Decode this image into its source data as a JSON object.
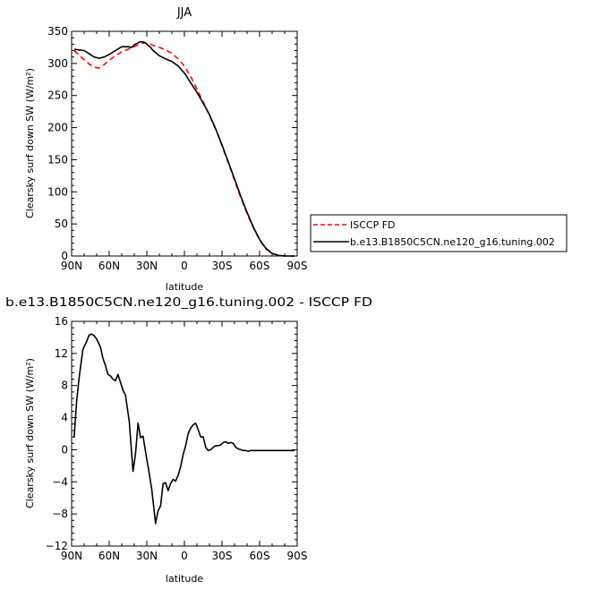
{
  "chart_data": [
    {
      "type": "line",
      "title": "JJA",
      "xlabel": "latitude",
      "ylabel": "Clearsky surf down SW (W/m²)",
      "xlim": [
        90,
        -90
      ],
      "ylim": [
        0,
        350
      ],
      "x_tick_values": [
        90,
        60,
        30,
        0,
        -30,
        -60,
        -90
      ],
      "x_tick_labels": [
        "90N",
        "60N",
        "30N",
        "0",
        "30S",
        "60S",
        "90S"
      ],
      "y_tick_values": [
        0,
        50,
        100,
        150,
        200,
        250,
        300,
        350
      ],
      "y_tick_labels": [
        "0",
        "50",
        "100",
        "150",
        "200",
        "250",
        "300",
        "350"
      ],
      "legend": {
        "position": "outside-right"
      },
      "series": [
        {
          "name": "ISCCP FD",
          "color": "#ff0000",
          "dash": "dashed",
          "x": [
            88,
            84,
            80,
            76,
            72,
            68,
            64,
            60,
            55,
            50,
            45,
            40,
            35,
            32,
            30,
            27,
            25,
            20,
            15,
            10,
            5,
            0,
            -5,
            -10,
            -15,
            -20,
            -25,
            -30,
            -35,
            -40,
            -45,
            -50,
            -55,
            -60,
            -65,
            -70,
            -75,
            -80,
            -84,
            -88
          ],
          "y": [
            320,
            313,
            306,
            299,
            294,
            293,
            298,
            305,
            312,
            318,
            322,
            326,
            331,
            332,
            331,
            330,
            328,
            325,
            321,
            316,
            307,
            296,
            280,
            260,
            240,
            219,
            197,
            172,
            145,
            118,
            91,
            66,
            44,
            25,
            11,
            4,
            1,
            0,
            0,
            0
          ]
        },
        {
          "name": "b.e13.B1850C5CN.ne120_g16.tuning.002",
          "color": "#000000",
          "dash": "solid",
          "x": [
            88,
            84,
            80,
            76,
            72,
            68,
            64,
            60,
            55,
            50,
            45,
            42,
            40,
            35,
            32,
            30,
            27,
            25,
            20,
            15,
            10,
            5,
            0,
            -5,
            -10,
            -15,
            -20,
            -25,
            -30,
            -35,
            -40,
            -45,
            -50,
            -55,
            -60,
            -65,
            -70,
            -75,
            -80,
            -84,
            -88
          ],
          "y": [
            322,
            321,
            320,
            315,
            310,
            308,
            310,
            314,
            320,
            326,
            326,
            325,
            329,
            334,
            333,
            330,
            325,
            320,
            312,
            307,
            303,
            296,
            285,
            270,
            255,
            238,
            220,
            198,
            173,
            147,
            120,
            93,
            68,
            45,
            26,
            12,
            4,
            1,
            0,
            0,
            0
          ]
        }
      ]
    },
    {
      "type": "line",
      "title": "b.e13.B1850C5CN.ne120_g16.tuning.002 - ISCCP FD",
      "xlabel": "latitude",
      "ylabel": "Clearsky surf down SW (W/m²)",
      "xlim": [
        90,
        -90
      ],
      "ylim": [
        -12,
        16
      ],
      "x_tick_values": [
        90,
        60,
        30,
        0,
        -30,
        -60,
        -90
      ],
      "x_tick_labels": [
        "90N",
        "60N",
        "30N",
        "0",
        "30S",
        "60S",
        "90S"
      ],
      "y_tick_values": [
        -12,
        -8,
        -4,
        0,
        4,
        8,
        12,
        16
      ],
      "y_tick_labels": [
        "−12",
        "−8",
        "−4",
        "0",
        "4",
        "8",
        "12",
        "16"
      ],
      "series": [
        {
          "color": "#000000",
          "dash": "solid",
          "x": [
            88,
            86,
            84,
            81,
            78,
            76,
            74,
            72,
            70,
            67,
            65,
            63,
            61,
            59,
            57,
            55,
            53,
            51,
            49,
            47,
            44,
            41,
            39,
            37,
            35,
            33,
            30,
            28,
            26,
            23,
            21,
            19,
            17,
            15,
            13,
            11,
            9,
            7,
            5,
            3,
            1,
            -1,
            -3,
            -5,
            -7,
            -9,
            -11,
            -13,
            -15,
            -17,
            -19,
            -21,
            -23,
            -25,
            -27,
            -29,
            -31,
            -33,
            -35,
            -37,
            -39,
            -41,
            -43,
            -45,
            -47,
            -49,
            -51,
            -53,
            -55,
            -57,
            -59,
            -61,
            -63,
            -65,
            -67,
            -69,
            -71,
            -75,
            -80,
            -85,
            -88
          ],
          "y": [
            1.5,
            6.0,
            9.0,
            12.5,
            13.5,
            14.3,
            14.4,
            14.2,
            13.8,
            12.8,
            11.4,
            10.5,
            9.4,
            9.2,
            8.8,
            8.6,
            9.4,
            8.4,
            7.4,
            6.8,
            3.5,
            -2.7,
            -0.5,
            3.3,
            1.5,
            1.7,
            -1.2,
            -3.0,
            -5.0,
            -9.2,
            -7.6,
            -7.0,
            -4.2,
            -4.1,
            -5.1,
            -4.2,
            -3.7,
            -3.9,
            -3.2,
            -2.1,
            -0.6,
            0.5,
            2.0,
            2.7,
            3.1,
            3.3,
            2.5,
            1.6,
            1.6,
            0.3,
            -0.1,
            0.0,
            0.3,
            0.5,
            0.5,
            0.6,
            0.9,
            1.0,
            0.8,
            0.9,
            0.8,
            0.3,
            0.1,
            0.0,
            -0.1,
            -0.1,
            -0.2,
            -0.1,
            -0.1,
            -0.1,
            -0.1,
            -0.1,
            -0.1,
            -0.1,
            -0.1,
            -0.1,
            -0.1,
            -0.1,
            -0.1,
            -0.1,
            -0.1
          ]
        }
      ]
    }
  ]
}
